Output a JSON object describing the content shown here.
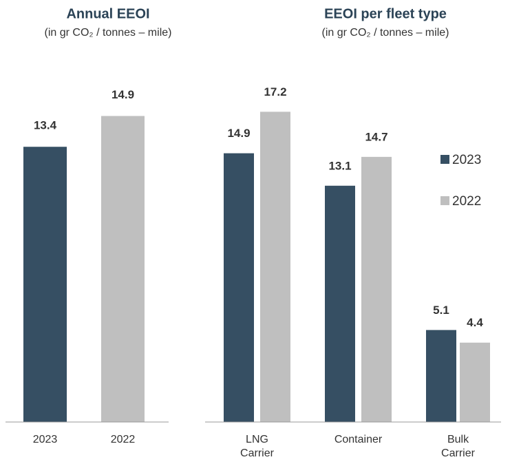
{
  "chart_data": [
    {
      "type": "bar",
      "title": "Annual EEOI",
      "subtitle": "(in gr CO₂ / tonnes – mile)",
      "categories": [
        "2023",
        "2022"
      ],
      "values": [
        13.4,
        14.9
      ],
      "colors": [
        "#364f63",
        "#bfbfbf"
      ],
      "ylim": [
        0,
        18
      ]
    },
    {
      "type": "grouped_bar",
      "title": "EEOI per fleet type",
      "subtitle": "(in gr CO₂ / tonnes – mile)",
      "categories": [
        "LNG Carrier",
        "Container",
        "Bulk Carrier"
      ],
      "series": [
        {
          "name": "2023",
          "color": "#364f63",
          "values": [
            14.9,
            13.1,
            5.1
          ]
        },
        {
          "name": "2022",
          "color": "#bfbfbf",
          "values": [
            17.2,
            14.7,
            4.4
          ]
        }
      ],
      "ylim": [
        0,
        20
      ],
      "legend": "right"
    }
  ]
}
